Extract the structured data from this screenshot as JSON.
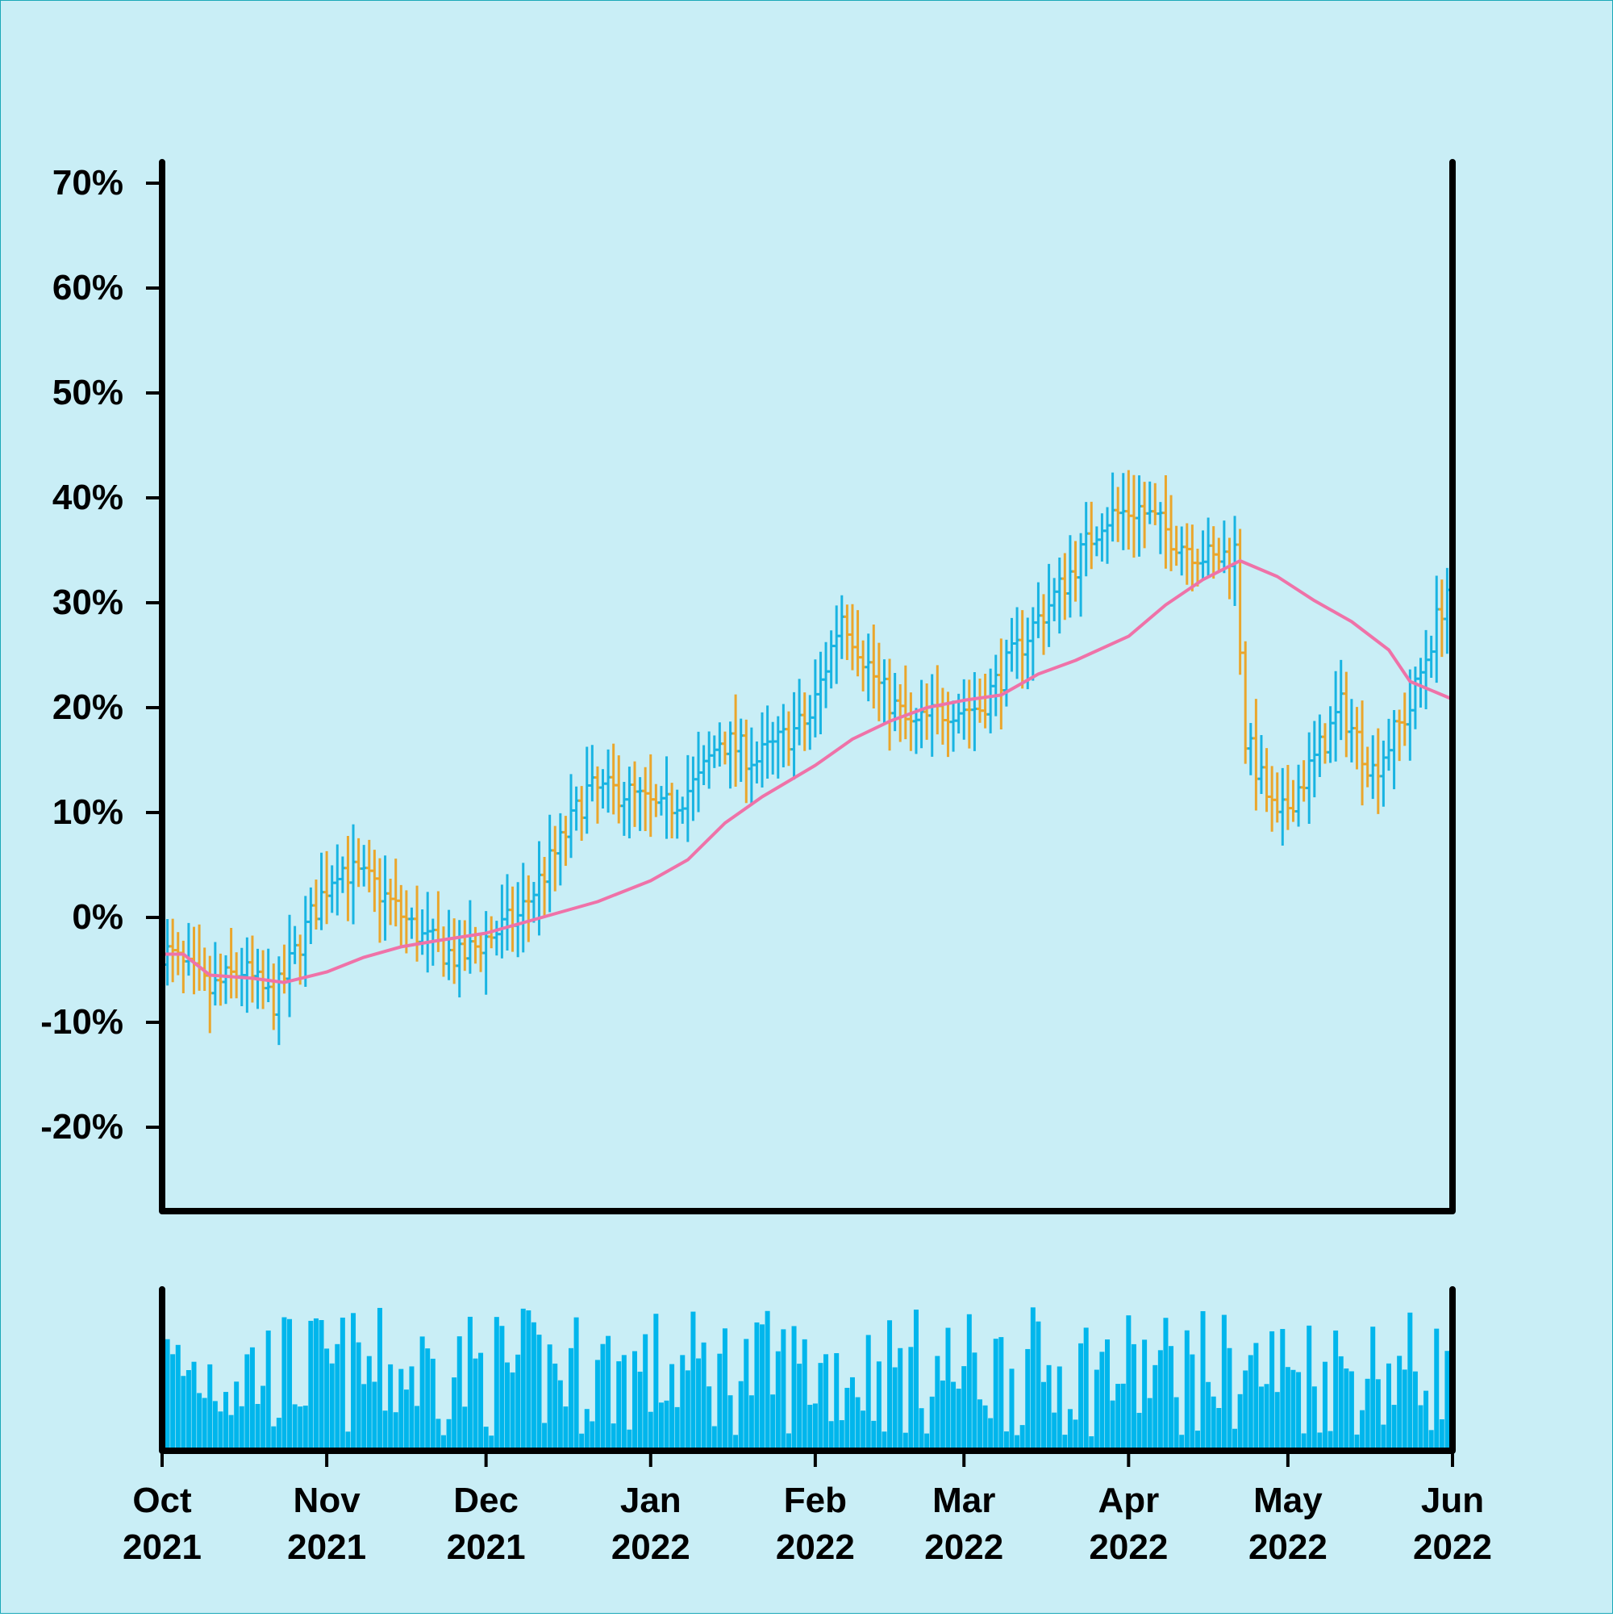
{
  "chart_data": {
    "type": "ohlc",
    "colors": {
      "background": "#c9eef6",
      "up": "#19b4e2",
      "down": "#eaa62c",
      "moving_average": "#ef72a8",
      "volume": "#00b6ec",
      "axis": "#000000"
    },
    "price_axis": {
      "ylim": [
        -0.28,
        0.72
      ],
      "ticks": [
        -0.2,
        -0.1,
        0,
        0.1,
        0.2,
        0.3,
        0.4,
        0.5,
        0.6,
        0.7
      ],
      "tick_labels": [
        "-20%",
        "-10%",
        "0%",
        "10%",
        "20%",
        "30%",
        "40%",
        "50%",
        "60%",
        "70%"
      ]
    },
    "x_axis": {
      "range": [
        "2021-10-01",
        "2022-06-01"
      ],
      "ticks": [
        "2021-10-01",
        "2021-11-01",
        "2021-12-01",
        "2022-01-01",
        "2022-02-01",
        "2022-03-01",
        "2022-04-01",
        "2022-05-01",
        "2022-06-01"
      ],
      "tick_labels": [
        [
          "Oct",
          "2021"
        ],
        [
          "Nov",
          "2021"
        ],
        [
          "Dec",
          "2021"
        ],
        [
          "Jan",
          "2022"
        ],
        [
          "Feb",
          "2022"
        ],
        [
          "Mar",
          "2022"
        ],
        [
          "Apr",
          "2022"
        ],
        [
          "May",
          "2022"
        ],
        [
          "Jun",
          "2022"
        ]
      ]
    },
    "price_path": [
      {
        "date": "2021-10-01",
        "value": -0.03
      },
      {
        "date": "2021-10-10",
        "value": -0.07
      },
      {
        "date": "2021-10-16",
        "value": -0.05
      },
      {
        "date": "2021-10-22",
        "value": -0.08
      },
      {
        "date": "2021-10-29",
        "value": 0.0
      },
      {
        "date": "2021-11-03",
        "value": 0.05
      },
      {
        "date": "2021-11-10",
        "value": 0.03
      },
      {
        "date": "2021-11-19",
        "value": -0.02
      },
      {
        "date": "2021-11-26",
        "value": -0.04
      },
      {
        "date": "2021-12-01",
        "value": -0.02
      },
      {
        "date": "2021-12-07",
        "value": 0.0
      },
      {
        "date": "2021-12-14",
        "value": 0.06
      },
      {
        "date": "2021-12-20",
        "value": 0.12
      },
      {
        "date": "2021-12-27",
        "value": 0.12
      },
      {
        "date": "2022-01-03",
        "value": 0.1
      },
      {
        "date": "2022-01-10",
        "value": 0.13
      },
      {
        "date": "2022-01-14",
        "value": 0.17
      },
      {
        "date": "2022-01-21",
        "value": 0.15
      },
      {
        "date": "2022-01-31",
        "value": 0.19
      },
      {
        "date": "2022-02-06",
        "value": 0.29
      },
      {
        "date": "2022-02-13",
        "value": 0.22
      },
      {
        "date": "2022-02-19",
        "value": 0.18
      },
      {
        "date": "2022-02-26",
        "value": 0.2
      },
      {
        "date": "2022-03-04",
        "value": 0.2
      },
      {
        "date": "2022-03-13",
        "value": 0.27
      },
      {
        "date": "2022-03-20",
        "value": 0.32
      },
      {
        "date": "2022-03-27",
        "value": 0.38
      },
      {
        "date": "2022-04-03",
        "value": 0.39
      },
      {
        "date": "2022-04-10",
        "value": 0.36
      },
      {
        "date": "2022-04-17",
        "value": 0.34
      },
      {
        "date": "2022-04-21",
        "value": 0.35
      },
      {
        "date": "2022-04-23",
        "value": 0.17
      },
      {
        "date": "2022-04-29",
        "value": 0.09
      },
      {
        "date": "2022-05-06",
        "value": 0.15
      },
      {
        "date": "2022-05-11",
        "value": 0.2
      },
      {
        "date": "2022-05-17",
        "value": 0.14
      },
      {
        "date": "2022-05-24",
        "value": 0.2
      },
      {
        "date": "2022-06-01",
        "value": 0.33
      }
    ],
    "moving_average": [
      {
        "date": "2021-10-01",
        "value": -0.035
      },
      {
        "date": "2021-10-05",
        "value": -0.035
      },
      {
        "date": "2021-10-10",
        "value": -0.055
      },
      {
        "date": "2021-10-18",
        "value": -0.058
      },
      {
        "date": "2021-10-24",
        "value": -0.062
      },
      {
        "date": "2021-11-01",
        "value": -0.052
      },
      {
        "date": "2021-11-08",
        "value": -0.038
      },
      {
        "date": "2021-11-15",
        "value": -0.028
      },
      {
        "date": "2021-11-22",
        "value": -0.022
      },
      {
        "date": "2021-12-01",
        "value": -0.015
      },
      {
        "date": "2021-12-08",
        "value": -0.005
      },
      {
        "date": "2021-12-15",
        "value": 0.005
      },
      {
        "date": "2021-12-22",
        "value": 0.015
      },
      {
        "date": "2022-01-01",
        "value": 0.035
      },
      {
        "date": "2022-01-08",
        "value": 0.055
      },
      {
        "date": "2022-01-15",
        "value": 0.09
      },
      {
        "date": "2022-01-22",
        "value": 0.115
      },
      {
        "date": "2022-02-01",
        "value": 0.145
      },
      {
        "date": "2022-02-08",
        "value": 0.17
      },
      {
        "date": "2022-02-15",
        "value": 0.187
      },
      {
        "date": "2022-02-22",
        "value": 0.2
      },
      {
        "date": "2022-03-01",
        "value": 0.207
      },
      {
        "date": "2022-03-08",
        "value": 0.212
      },
      {
        "date": "2022-03-15",
        "value": 0.232
      },
      {
        "date": "2022-03-22",
        "value": 0.245
      },
      {
        "date": "2022-04-01",
        "value": 0.268
      },
      {
        "date": "2022-04-08",
        "value": 0.298
      },
      {
        "date": "2022-04-15",
        "value": 0.322
      },
      {
        "date": "2022-04-22",
        "value": 0.34
      },
      {
        "date": "2022-04-29",
        "value": 0.325
      },
      {
        "date": "2022-05-06",
        "value": 0.302
      },
      {
        "date": "2022-05-13",
        "value": 0.282
      },
      {
        "date": "2022-05-20",
        "value": 0.255
      },
      {
        "date": "2022-05-24",
        "value": 0.225
      },
      {
        "date": "2022-06-01",
        "value": 0.208
      }
    ],
    "volume": {
      "ylim": [
        0,
        1
      ],
      "level_min": 0.1,
      "level_max": 1.0
    }
  }
}
